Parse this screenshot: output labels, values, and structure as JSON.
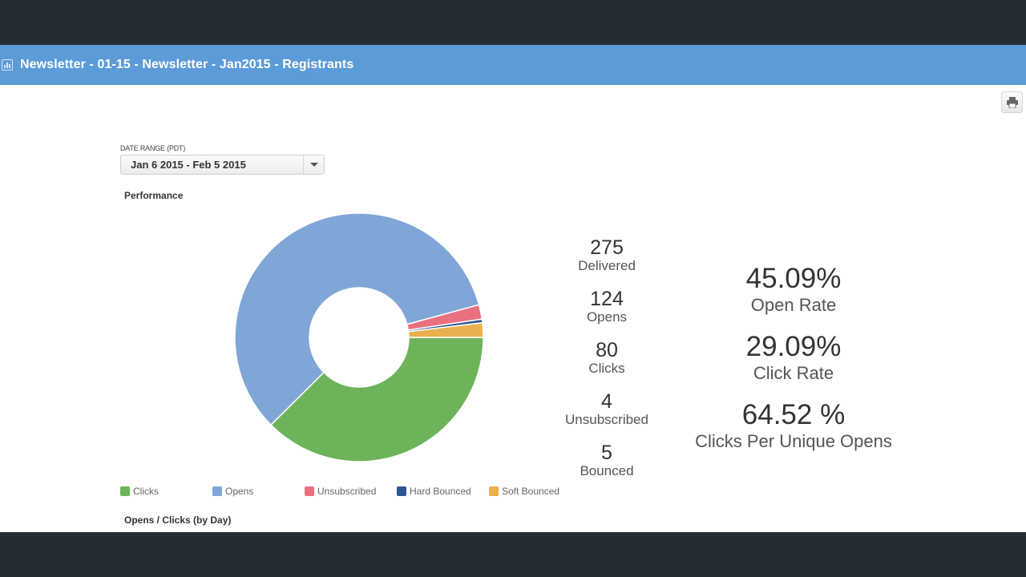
{
  "header": {
    "icon": "bar-chart-icon",
    "title": "Newsletter - 01-15 - Newsletter - Jan2015 - Registrants"
  },
  "toolbar": {
    "print_icon": "printer-icon"
  },
  "date_range": {
    "label": "DATE RANGE (PDT)",
    "value": "Jan 6 2015 - Feb 5 2015"
  },
  "sections": {
    "performance": "Performance",
    "opens_clicks": "Opens / Clicks (by Day)"
  },
  "stats": [
    {
      "value": "275",
      "label": "Delivered"
    },
    {
      "value": "124",
      "label": "Opens"
    },
    {
      "value": "80",
      "label": "Clicks"
    },
    {
      "value": "4",
      "label": "Unsubscribed"
    },
    {
      "value": "5",
      "label": "Bounced"
    }
  ],
  "rates": [
    {
      "value": "45.09%",
      "label": "Open Rate"
    },
    {
      "value": "29.09%",
      "label": "Click Rate"
    },
    {
      "value": "64.52 %",
      "label": "Clicks Per Unique Opens"
    }
  ],
  "chart_data": {
    "type": "pie",
    "donut": true,
    "title": "Performance",
    "legend_position": "bottom",
    "categories": [
      "Clicks",
      "Opens",
      "Unsubscribed",
      "Hard Bounced",
      "Soft Bounced"
    ],
    "values": [
      80,
      124,
      4,
      1,
      4
    ],
    "colors": [
      "#6db35a",
      "#7fa6d6",
      "#e8707f",
      "#2d5593",
      "#eab04f"
    ]
  }
}
